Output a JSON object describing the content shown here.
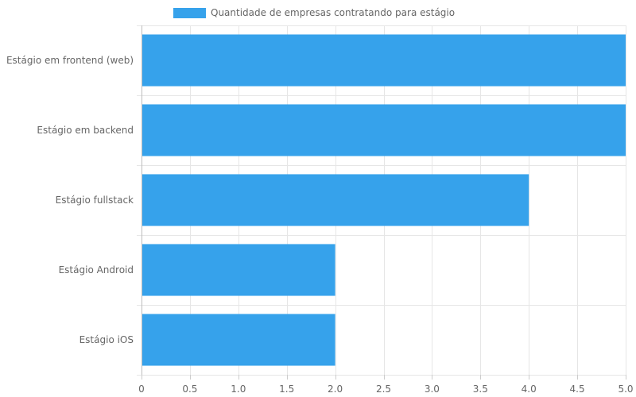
{
  "chart_data": {
    "type": "bar",
    "orientation": "horizontal",
    "categories": [
      "Estágio em frontend (web)",
      "Estágio em backend",
      "Estágio fullstack",
      "Estágio Android",
      "Estágio iOS"
    ],
    "series": [
      {
        "name": "Quantidade de empresas contratando para estágio",
        "values": [
          5,
          5,
          4,
          2,
          2
        ],
        "color": "#36A2EB"
      }
    ],
    "xlim": [
      0,
      5
    ],
    "x_ticks": [
      "0",
      "0.5",
      "1.0",
      "1.5",
      "2.0",
      "2.5",
      "3.0",
      "3.5",
      "4.0",
      "4.5",
      "5.0"
    ],
    "grid": true,
    "legend_position": "top-left"
  }
}
